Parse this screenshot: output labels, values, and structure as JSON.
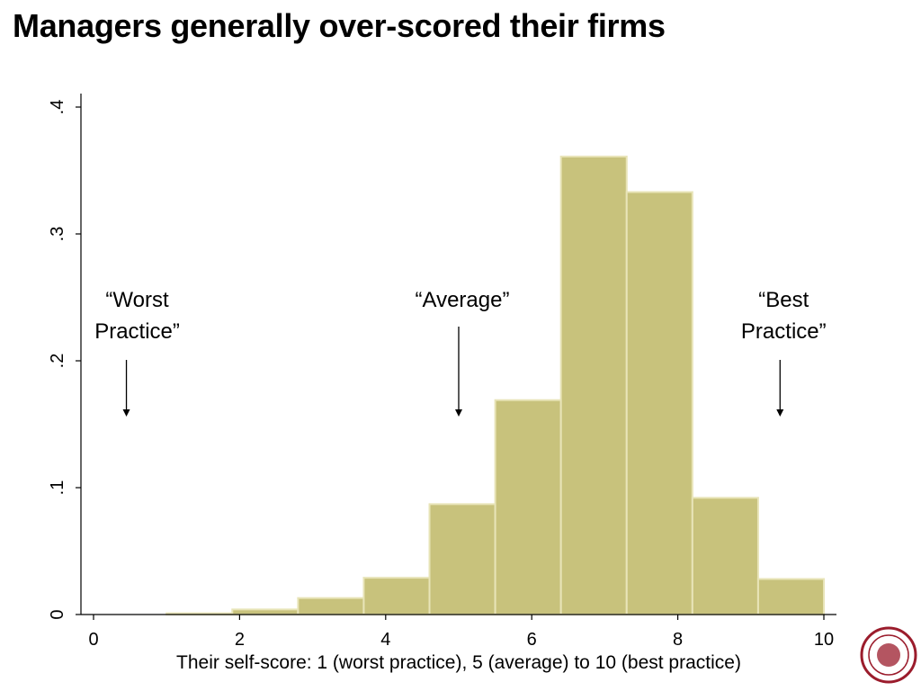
{
  "title": "Managers generally over-scored their firms",
  "colors": {
    "bar_fill": "#c8c27c",
    "bar_edge": "#e8e4b8",
    "axis": "#000000",
    "seal": "#9b1c2c"
  },
  "chart_data": {
    "type": "bar",
    "title": "Managers generally over-scored their firms",
    "xlabel": "Their self-score: 1 (worst practice), 5 (average) to 10 (best practice)",
    "ylabel": "",
    "xlim": [
      -0.2,
      10.2
    ],
    "ylim": [
      0,
      0.41
    ],
    "x_ticks": [
      0,
      2,
      4,
      6,
      8,
      10
    ],
    "x_tick_labels": [
      "0",
      "2",
      "4",
      "6",
      "8",
      "10"
    ],
    "y_ticks": [
      0,
      0.1,
      0.2,
      0.3,
      0.4
    ],
    "y_tick_labels": [
      "0",
      ".1",
      ".2",
      ".3",
      ".4"
    ],
    "bins": [
      {
        "start": 1.0,
        "end": 1.9,
        "value": 0.001
      },
      {
        "start": 1.9,
        "end": 2.8,
        "value": 0.004
      },
      {
        "start": 2.8,
        "end": 3.7,
        "value": 0.013
      },
      {
        "start": 3.7,
        "end": 4.6,
        "value": 0.029
      },
      {
        "start": 4.6,
        "end": 5.5,
        "value": 0.087
      },
      {
        "start": 5.5,
        "end": 6.4,
        "value": 0.169
      },
      {
        "start": 6.4,
        "end": 7.3,
        "value": 0.361
      },
      {
        "start": 7.3,
        "end": 8.2,
        "value": 0.333
      },
      {
        "start": 8.2,
        "end": 9.1,
        "value": 0.092
      },
      {
        "start": 9.1,
        "end": 10.0,
        "value": 0.028
      }
    ],
    "grid": false,
    "annotations": [
      {
        "lines": [
          "“Worst",
          "Practice”"
        ],
        "x": 0.45
      },
      {
        "lines": [
          "“Average”"
        ],
        "x": 5.0
      },
      {
        "lines": [
          "“Best",
          "Practice”"
        ],
        "x": 9.4
      }
    ]
  }
}
